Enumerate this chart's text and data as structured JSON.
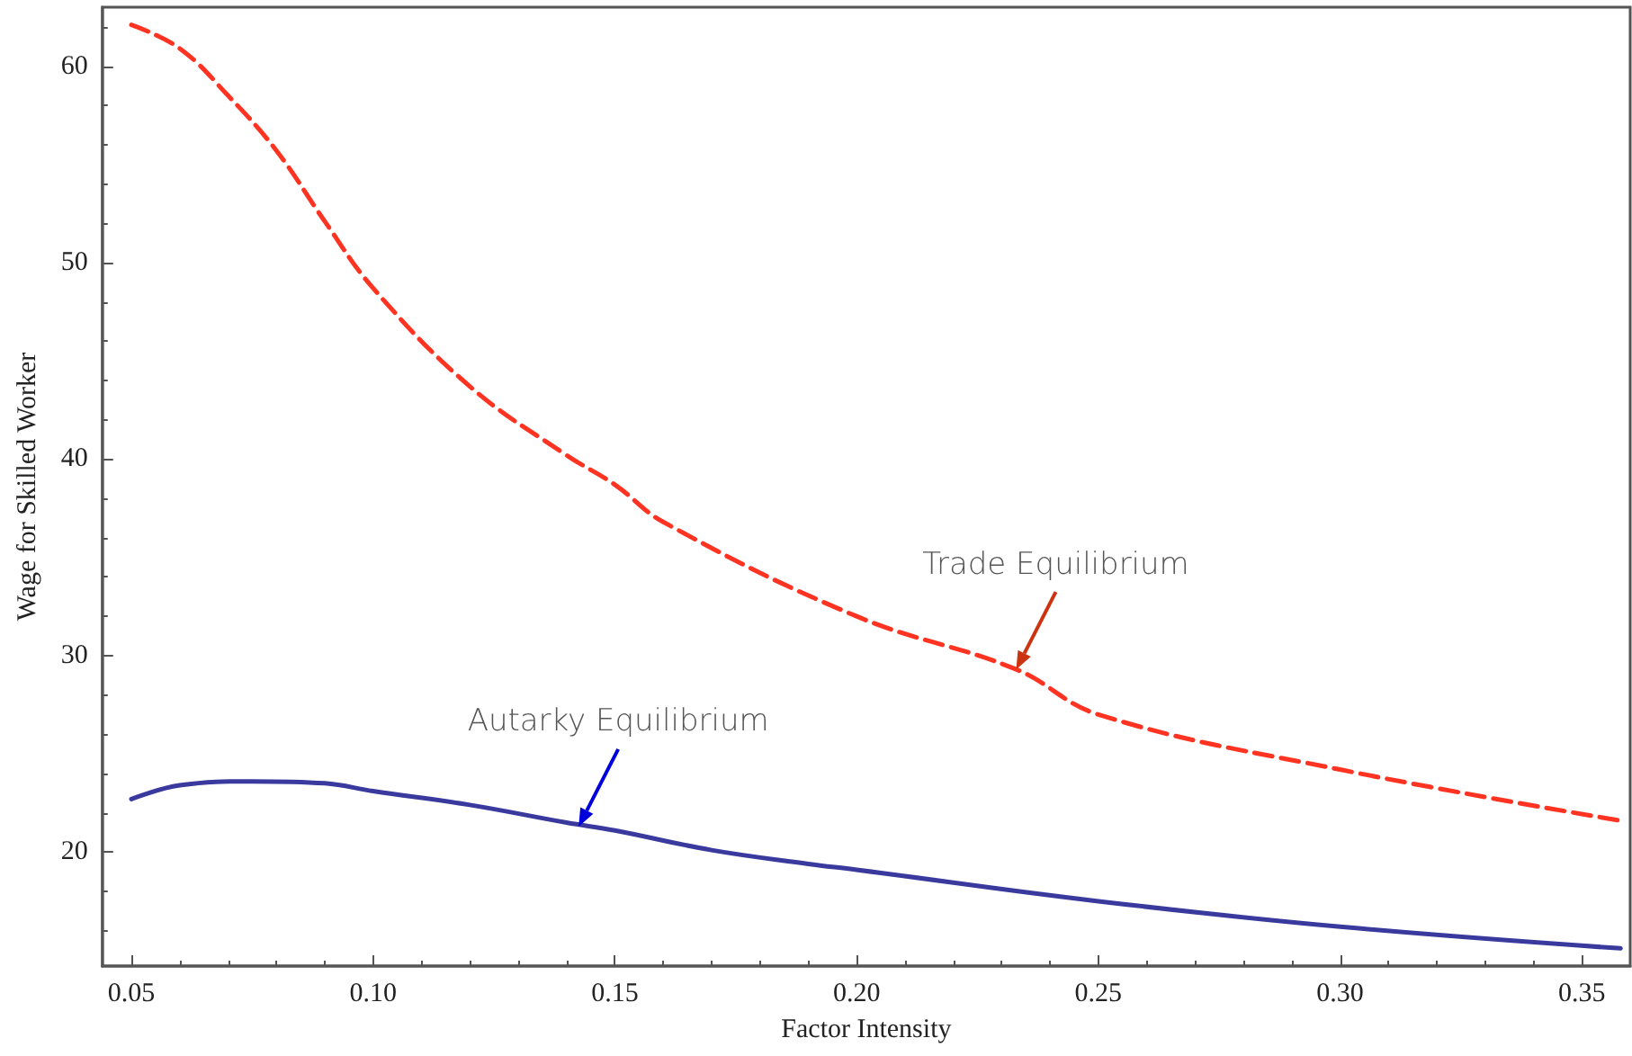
{
  "chart_data": {
    "type": "line",
    "xlabel": "Factor Intensity",
    "ylabel": "Wage for Skilled Worker",
    "xlim": [
      0.044,
      0.36
    ],
    "ylim": [
      14.2,
      63
    ],
    "xticks": [
      {
        "value": 0.05,
        "label": "0.05"
      },
      {
        "value": 0.1,
        "label": "0.10"
      },
      {
        "value": 0.15,
        "label": "0.15"
      },
      {
        "value": 0.2,
        "label": "0.20"
      },
      {
        "value": 0.25,
        "label": "0.25"
      },
      {
        "value": 0.3,
        "label": "0.30"
      },
      {
        "value": 0.35,
        "label": "0.35"
      }
    ],
    "yticks": [
      20,
      30,
      40,
      50,
      60
    ],
    "grid": false,
    "marker": "none",
    "series": [
      {
        "color": "#ff3322",
        "line_style": "dashed",
        "x": [
          0.05,
          0.06,
          0.07,
          0.08,
          0.09,
          0.1,
          0.12,
          0.14,
          0.15,
          0.16,
          0.2,
          0.233,
          0.25,
          0.3,
          0.358
        ],
        "values": [
          62.1,
          60.9,
          58.5,
          55.7,
          52.1,
          48.7,
          43.7,
          40.2,
          38.7,
          36.8,
          32.0,
          29.3,
          27.0,
          24.2,
          21.6
        ]
      },
      {
        "color": "#3a3a9e",
        "line_style": "solid",
        "x": [
          0.05,
          0.06,
          0.075,
          0.09,
          0.1,
          0.12,
          0.14,
          0.15,
          0.17,
          0.19,
          0.2,
          0.25,
          0.3,
          0.358
        ],
        "values": [
          22.7,
          23.4,
          23.6,
          23.5,
          23.1,
          22.4,
          21.5,
          21.1,
          20.1,
          19.4,
          19.1,
          17.5,
          16.2,
          15.1
        ]
      }
    ],
    "annotations": [
      {
        "text": "Autarky Equilibrium",
        "x": 0.1425,
        "y": 21.3
      },
      {
        "text": "Trade Equilibrium",
        "x": 0.233,
        "y": 29.3
      }
    ]
  }
}
